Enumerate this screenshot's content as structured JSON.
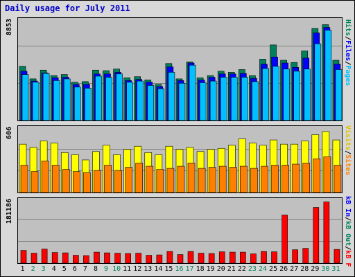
{
  "title": "Daily usage for July 2011",
  "colors": {
    "hits": "#00805c",
    "files": "#0000ff",
    "pages": "#00c0ff",
    "visits": "#ffff00",
    "sites": "#ff8000",
    "kbin": "#0000ff",
    "kbout": "#00805c",
    "kbf": "#ff0000",
    "title": "#0000cc"
  },
  "chart_data": [
    {
      "type": "bar",
      "title": "Daily usage for July 2011",
      "ylabel": "Pages / Files / Hits",
      "ymax_label": "8853",
      "ylim": [
        0,
        8853
      ],
      "categories": [
        "1",
        "2",
        "3",
        "4",
        "5",
        "6",
        "7",
        "8",
        "9",
        "10",
        "11",
        "12",
        "13",
        "14",
        "15",
        "16",
        "17",
        "18",
        "19",
        "20",
        "21",
        "22",
        "23",
        "24",
        "25",
        "26",
        "27",
        "28",
        "29",
        "30",
        "31"
      ],
      "series": [
        {
          "name": "Hits",
          "values": [
            4950,
            3800,
            4600,
            4100,
            4200,
            3500,
            3550,
            4600,
            4550,
            4700,
            3900,
            4000,
            3700,
            3300,
            5200,
            3800,
            5350,
            3900,
            4100,
            4500,
            4400,
            4650,
            4100,
            5600,
            6900,
            5500,
            5300,
            6350,
            8400,
            8750,
            5500
          ]
        },
        {
          "name": "Files",
          "values": [
            4500,
            3600,
            4350,
            3900,
            3950,
            3300,
            3300,
            4250,
            4250,
            4400,
            3650,
            3750,
            3500,
            3100,
            4900,
            3650,
            5250,
            3700,
            3950,
            4250,
            4250,
            4300,
            3850,
            5150,
            5800,
            5250,
            4850,
            5700,
            8000,
            8500,
            5150
          ]
        },
        {
          "name": "Pages",
          "values": [
            4200,
            3500,
            4300,
            3650,
            3800,
            3050,
            2950,
            4050,
            3950,
            4250,
            3500,
            3600,
            3200,
            2900,
            4400,
            3400,
            5050,
            3450,
            3600,
            3950,
            3950,
            3950,
            3550,
            4750,
            4950,
            4700,
            4500,
            4700,
            7000,
            8250,
            4650
          ]
        }
      ]
    },
    {
      "type": "bar",
      "ylabel": "Visits / Sites",
      "ymax_label": "606",
      "ylim": [
        0,
        606
      ],
      "series": [
        {
          "name": "Visits",
          "values": [
            460,
            430,
            490,
            470,
            380,
            360,
            310,
            390,
            450,
            360,
            410,
            440,
            380,
            360,
            440,
            410,
            430,
            390,
            410,
            420,
            450,
            510,
            470,
            450,
            500,
            460,
            460,
            490,
            550,
            580,
            500
          ]
        },
        {
          "name": "Sites",
          "values": [
            260,
            200,
            300,
            260,
            220,
            200,
            190,
            210,
            260,
            210,
            240,
            280,
            250,
            220,
            230,
            250,
            280,
            230,
            240,
            250,
            240,
            250,
            230,
            250,
            260,
            260,
            270,
            280,
            320,
            340,
            260
          ]
        }
      ]
    },
    {
      "type": "bar",
      "ylabel": "KBytes",
      "ymax_label": "181186",
      "ylim": [
        0,
        181186
      ],
      "series": [
        {
          "name": "KBytes",
          "values": [
            37000,
            29000,
            41000,
            31000,
            30000,
            23000,
            22000,
            32000,
            30000,
            29000,
            28000,
            29000,
            23000,
            24000,
            34000,
            25000,
            34000,
            29000,
            28000,
            33000,
            32000,
            32000,
            27000,
            34000,
            33000,
            140000,
            39000,
            43000,
            162000,
            178000,
            40000
          ]
        }
      ]
    }
  ],
  "legend": {
    "hits": "Hits",
    "files": "Files",
    "pages": "Pages",
    "sep": "/",
    "visits": "Visits",
    "sites": "Sites",
    "kbin": "kB In",
    "kbout": "kB Out",
    "kbf": "kB F"
  },
  "days": [
    "1",
    "2",
    "3",
    "4",
    "5",
    "6",
    "7",
    "8",
    "9",
    "10",
    "11",
    "12",
    "13",
    "14",
    "15",
    "16",
    "17",
    "18",
    "19",
    "20",
    "21",
    "22",
    "23",
    "24",
    "25",
    "26",
    "27",
    "28",
    "29",
    "30",
    "31"
  ],
  "weekend_days": [
    "2",
    "3",
    "9",
    "10",
    "16",
    "17",
    "23",
    "24",
    "30",
    "31"
  ]
}
